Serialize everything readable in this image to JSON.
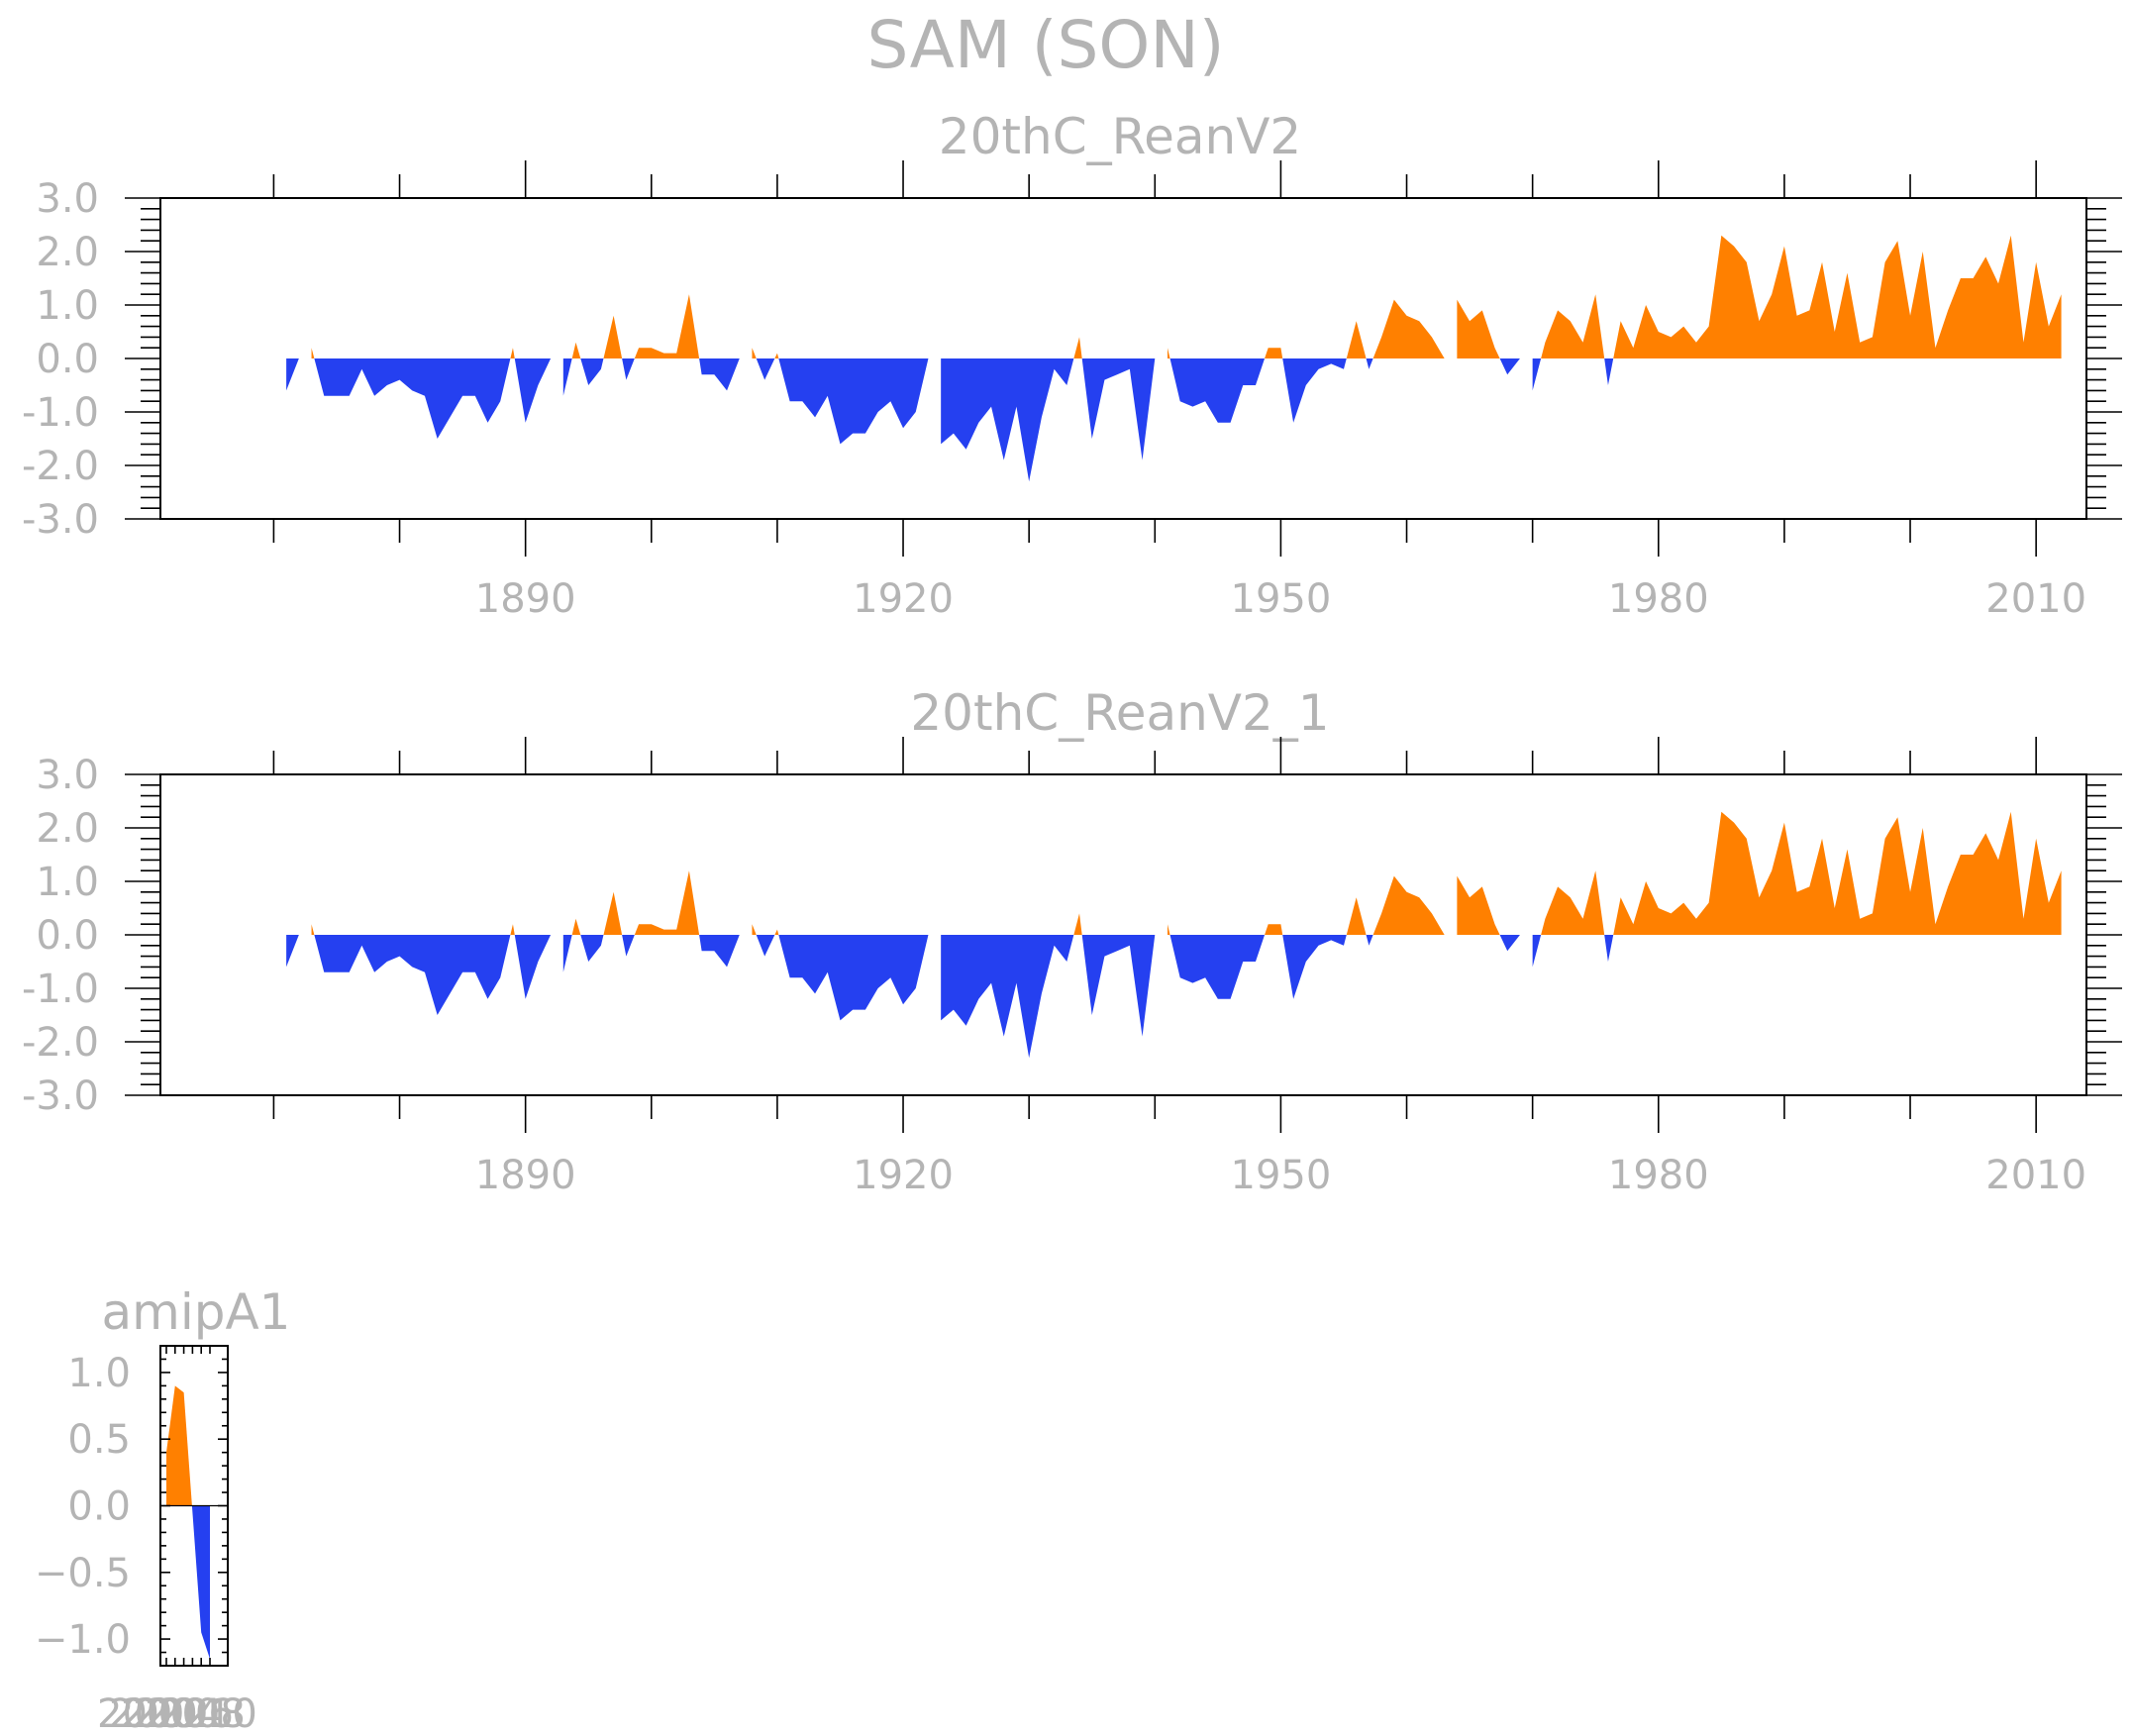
{
  "figure": {
    "title": "SAM (SON)"
  },
  "colors": {
    "positive": "#ff8000",
    "negative": "#2540f0",
    "text": "#b4b4b4",
    "frame": "#000000"
  },
  "chart_data": [
    {
      "type": "area",
      "title": "20thC_ReanV2",
      "x_start": 1871,
      "x_end": 2012,
      "xlim": [
        1861,
        2014
      ],
      "xticks": [
        1890,
        1920,
        1950,
        1980,
        2010
      ],
      "ylim": [
        -3.0,
        3.0
      ],
      "yticks": [
        "-3.0",
        "-2.0",
        "-1.0",
        "0.0",
        "1.0",
        "2.0",
        "3.0"
      ],
      "fill_above_zero": "#ff8000",
      "fill_below_zero": "#2540f0",
      "values": [
        -0.6,
        0.0,
        0.2,
        -0.7,
        -0.7,
        -0.7,
        -0.2,
        -0.7,
        -0.5,
        -0.4,
        -0.6,
        -0.7,
        -1.5,
        -1.1,
        -0.7,
        -0.7,
        -1.2,
        -0.8,
        0.2,
        -1.2,
        -0.5,
        0.0,
        -0.7,
        0.3,
        -0.5,
        -0.2,
        0.8,
        -0.4,
        0.2,
        0.2,
        0.1,
        0.1,
        1.2,
        -0.3,
        -0.3,
        -0.6,
        0.0,
        0.2,
        -0.4,
        0.1,
        -0.8,
        -0.8,
        -1.1,
        -0.7,
        -1.6,
        -1.4,
        -1.4,
        -1.0,
        -0.8,
        -1.3,
        -1.0,
        0.0,
        -1.6,
        -1.4,
        -1.7,
        -1.2,
        -0.9,
        -1.9,
        -0.9,
        -2.3,
        -1.1,
        -0.2,
        -0.5,
        0.4,
        -1.5,
        -0.4,
        -0.3,
        -0.2,
        -1.9,
        0.0,
        0.2,
        -0.8,
        -0.9,
        -0.8,
        -1.2,
        -1.2,
        -0.5,
        -0.5,
        0.2,
        0.2,
        -1.2,
        -0.5,
        -0.2,
        -0.1,
        -0.2,
        0.7,
        -0.2,
        0.4,
        1.1,
        0.8,
        0.7,
        0.4,
        0.0,
        1.1,
        0.7,
        0.9,
        0.2,
        -0.3,
        0.0,
        -0.6,
        0.3,
        0.9,
        0.7,
        0.3,
        1.2,
        -0.5,
        0.7,
        0.2,
        1.0,
        0.5,
        0.4,
        0.6,
        0.3,
        0.6,
        2.3,
        2.1,
        1.8,
        0.7,
        1.2,
        2.1,
        0.8,
        0.9,
        1.8,
        0.5,
        1.6,
        0.3,
        0.4,
        1.8,
        2.2,
        0.8,
        2.0,
        0.2,
        0.9,
        1.5,
        1.5,
        1.9,
        1.4,
        2.3,
        0.3,
        1.8,
        0.6,
        1.2
      ]
    },
    {
      "type": "area",
      "title": "20thC_ReanV2_1",
      "x_start": 1871,
      "x_end": 2012,
      "xlim": [
        1861,
        2014
      ],
      "xticks": [
        1890,
        1920,
        1950,
        1980,
        2010
      ],
      "ylim": [
        -3.0,
        3.0
      ],
      "yticks": [
        "-3.0",
        "-2.0",
        "-1.0",
        "0.0",
        "1.0",
        "2.0",
        "3.0"
      ],
      "fill_above_zero": "#ff8000",
      "fill_below_zero": "#2540f0",
      "values": [
        -0.6,
        0.0,
        0.2,
        -0.7,
        -0.7,
        -0.7,
        -0.2,
        -0.7,
        -0.5,
        -0.4,
        -0.6,
        -0.7,
        -1.5,
        -1.1,
        -0.7,
        -0.7,
        -1.2,
        -0.8,
        0.2,
        -1.2,
        -0.5,
        0.0,
        -0.7,
        0.3,
        -0.5,
        -0.2,
        0.8,
        -0.4,
        0.2,
        0.2,
        0.1,
        0.1,
        1.2,
        -0.3,
        -0.3,
        -0.6,
        0.0,
        0.2,
        -0.4,
        0.1,
        -0.8,
        -0.8,
        -1.1,
        -0.7,
        -1.6,
        -1.4,
        -1.4,
        -1.0,
        -0.8,
        -1.3,
        -1.0,
        0.0,
        -1.6,
        -1.4,
        -1.7,
        -1.2,
        -0.9,
        -1.9,
        -0.9,
        -2.3,
        -1.1,
        -0.2,
        -0.5,
        0.4,
        -1.5,
        -0.4,
        -0.3,
        -0.2,
        -1.9,
        0.0,
        0.2,
        -0.8,
        -0.9,
        -0.8,
        -1.2,
        -1.2,
        -0.5,
        -0.5,
        0.2,
        0.2,
        -1.2,
        -0.5,
        -0.2,
        -0.1,
        -0.2,
        0.7,
        -0.2,
        0.4,
        1.1,
        0.8,
        0.7,
        0.4,
        0.0,
        1.1,
        0.7,
        0.9,
        0.2,
        -0.3,
        0.0,
        -0.6,
        0.3,
        0.9,
        0.7,
        0.3,
        1.2,
        -0.5,
        0.7,
        0.2,
        1.0,
        0.5,
        0.4,
        0.6,
        0.3,
        0.6,
        2.3,
        2.1,
        1.8,
        0.7,
        1.2,
        2.1,
        0.8,
        0.9,
        1.8,
        0.5,
        1.6,
        0.3,
        0.4,
        1.8,
        2.2,
        0.8,
        2.0,
        0.2,
        0.9,
        1.5,
        1.5,
        1.9,
        1.4,
        2.3,
        0.3,
        1.8,
        0.6,
        1.2
      ]
    },
    {
      "type": "area",
      "title": "amipA1",
      "ylim": [
        -1.2,
        1.2
      ],
      "yticks": [
        "−1.0",
        "−0.5",
        "0.0",
        "0.5",
        "1.0"
      ],
      "x_tick_labels_overlapping": "2000 2002 2004 2006 2008 2010",
      "fill_above_zero": "#ff8000",
      "fill_below_zero": "#2540f0",
      "values": [
        0.4,
        0.9,
        0.85,
        -0.05,
        -0.95,
        -1.15
      ]
    }
  ]
}
